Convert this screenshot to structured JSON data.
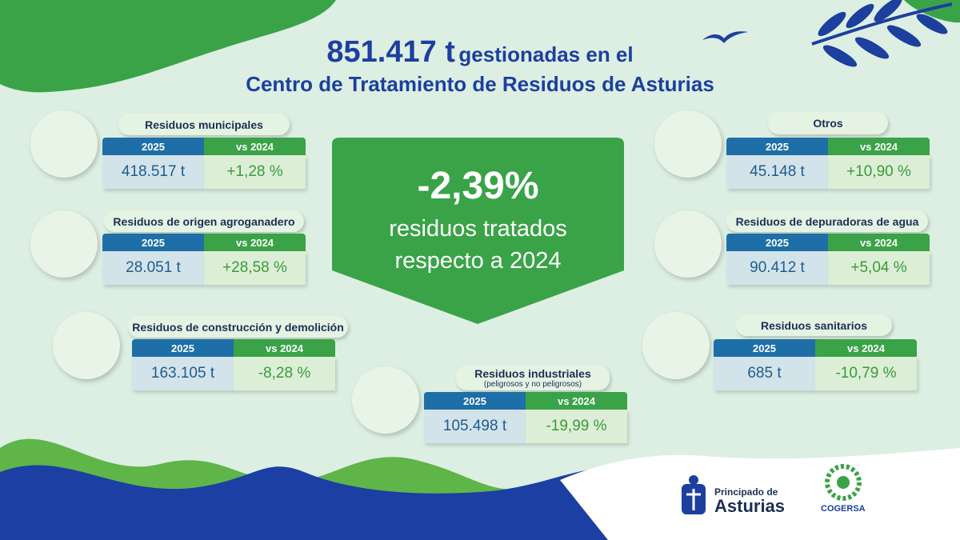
{
  "header": {
    "amount": "851.417 t",
    "line1": "gestionadas en el",
    "line2": "Centro de Tratamiento de Residuos de Asturias"
  },
  "highlight": {
    "value": "-2,39%",
    "line1": "residuos tratados",
    "line2": "respecto a 2024"
  },
  "columns": [
    "2025",
    "vs 2024"
  ],
  "cards": [
    {
      "title": "Residuos municipales",
      "value": "418.517 t",
      "change": "+1,28 %"
    },
    {
      "title": "Residuos de origen agroganadero",
      "value": "28.051 t",
      "change": "+28,58 %"
    },
    {
      "title": "Residuos de construcción y demolición",
      "value": "163.105 t",
      "change": "-8,28 %"
    },
    {
      "title": "Residuos industriales",
      "subtitle": "(peligrosos y no peligrosos)",
      "value": "105.498 t",
      "change": "-19,99 %"
    },
    {
      "title": "Otros",
      "value": "45.148 t",
      "change": "+10,90 %"
    },
    {
      "title": "Residuos de depuradoras de agua",
      "value": "90.412 t",
      "change": "+5,04 %"
    },
    {
      "title": "Residuos sanitarios",
      "value": "685 t",
      "change": "-10,79 %"
    }
  ],
  "logos": {
    "principado_line1": "Principado de",
    "principado_line2": "Asturias",
    "cogersa": "COGERSA"
  }
}
